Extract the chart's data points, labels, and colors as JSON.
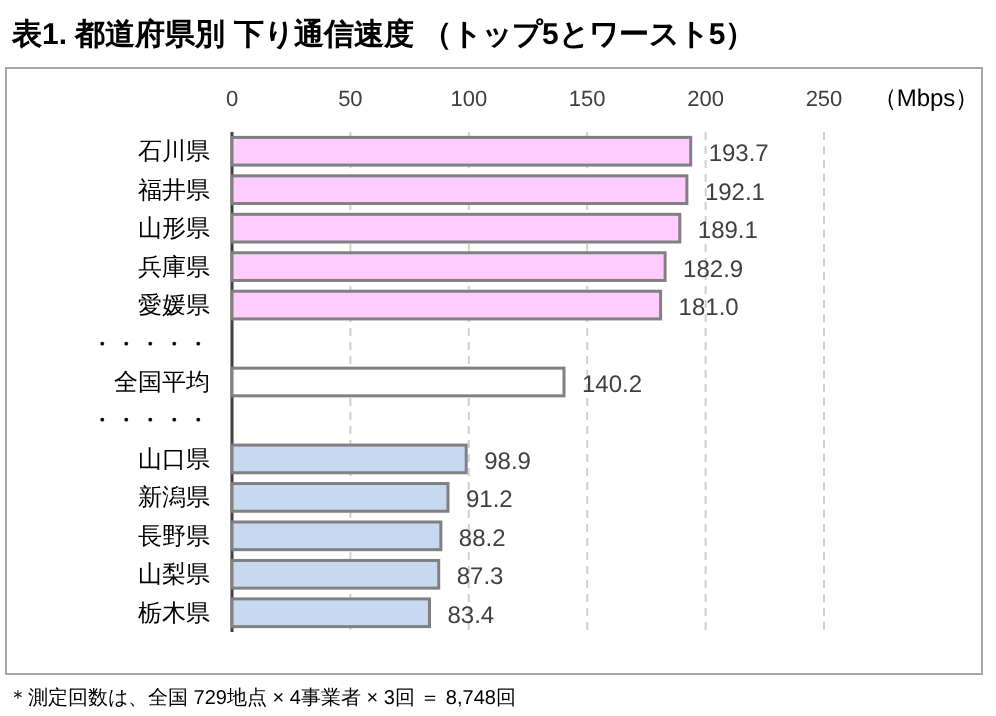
{
  "chart_data": {
    "type": "bar",
    "orientation": "horizontal",
    "title": "表1. 都道府県別 下り通信速度 （トップ5とワースト5）",
    "xlabel": "（Mbps）",
    "categories": [
      "石川県",
      "福井県",
      "山形県",
      "兵庫県",
      "愛媛県",
      "・・・・・",
      "全国平均",
      "・・・・・",
      "山口県",
      "新潟県",
      "長野県",
      "山梨県",
      "栃木県"
    ],
    "values": [
      193.7,
      192.1,
      189.1,
      182.9,
      181.0,
      null,
      140.2,
      null,
      98.9,
      91.2,
      88.2,
      87.3,
      83.4
    ],
    "value_labels": [
      "193.7",
      "192.1",
      "189.1",
      "182.9",
      "181.0",
      null,
      "140.2",
      null,
      "98.9",
      "91.2",
      "88.2",
      "87.3",
      "83.4"
    ],
    "colors": [
      "#ffccff",
      "#ffccff",
      "#ffccff",
      "#ffccff",
      "#ffccff",
      null,
      "#ffffff",
      null,
      "#c6d9f1",
      "#c6d9f1",
      "#c6d9f1",
      "#c6d9f1",
      "#c6d9f1"
    ],
    "xlim": [
      0,
      250
    ],
    "xticks": [
      0,
      50,
      100,
      150,
      200,
      250
    ],
    "grid": "x",
    "line_style": "dashed",
    "annotations": [
      "＊測定回数は、全国 729地点 × 4事業者 × 3回 ＝ 8,748回"
    ]
  }
}
